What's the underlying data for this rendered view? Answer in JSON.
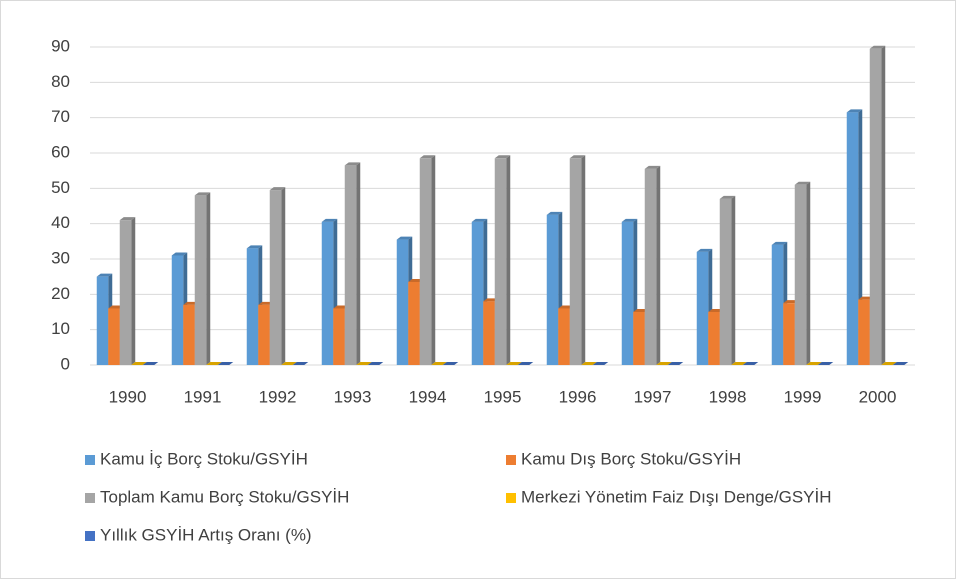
{
  "chart_data": {
    "type": "bar",
    "categories": [
      "1990",
      "1991",
      "1992",
      "1993",
      "1994",
      "1995",
      "1996",
      "1997",
      "1998",
      "1999",
      "2000"
    ],
    "series": [
      {
        "name": "Kamu İç Borç Stoku/GSYİH",
        "color": "#5b9bd5",
        "values": [
          25,
          31,
          33,
          40.5,
          35.5,
          40.5,
          42.5,
          40.5,
          32,
          34,
          71.5
        ]
      },
      {
        "name": "Kamu Dış Borç Stoku/GSYİH",
        "color": "#ed7d31",
        "values": [
          16,
          17,
          17,
          16,
          23.5,
          18,
          16,
          15,
          15,
          17.5,
          18.5
        ]
      },
      {
        "name": "Toplam Kamu Borç Stoku/GSYİH",
        "color": "#a5a5a5",
        "values": [
          41,
          48,
          49.5,
          56.5,
          58.5,
          58.5,
          58.5,
          55.5,
          47,
          51,
          89.5
        ]
      },
      {
        "name": "Merkezi Yönetim Faiz Dışı Denge/GSYİH",
        "color": "#ffc000",
        "values": [
          0,
          0,
          0,
          0,
          0,
          0,
          0,
          0,
          0,
          0,
          0
        ]
      },
      {
        "name": "Yıllık GSYİH Artış Oranı (%)",
        "color": "#4472c4",
        "values": [
          0,
          0,
          0,
          0,
          0,
          0,
          0,
          0,
          0,
          0,
          0
        ]
      }
    ],
    "ylim": [
      0,
      90
    ],
    "yticks": [
      0,
      10,
      20,
      30,
      40,
      50,
      60,
      70,
      80,
      90
    ],
    "grid": true,
    "legend": "bottom"
  }
}
